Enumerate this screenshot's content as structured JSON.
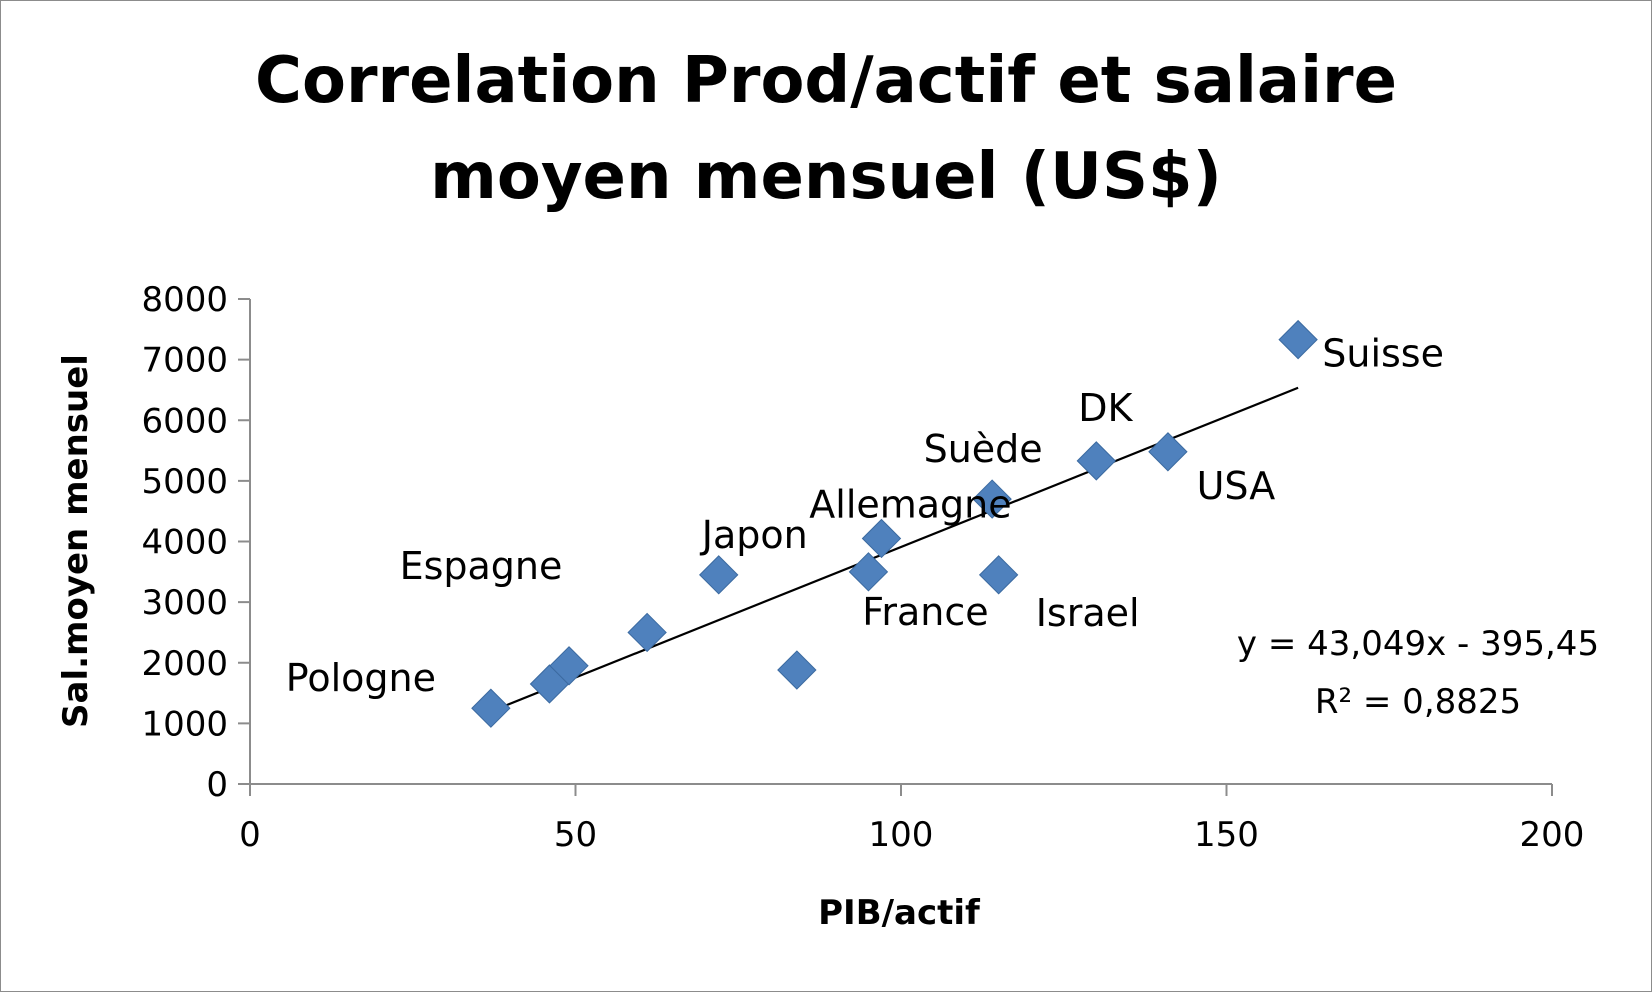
{
  "chart_data": {
    "type": "scatter",
    "title_lines": [
      "Correlation Prod/actif et salaire",
      "moyen mensuel (US$)"
    ],
    "xlabel": "PIB/actif",
    "ylabel": "Sal.moyen mensuel",
    "xlim": [
      0,
      200
    ],
    "ylim": [
      0,
      8000
    ],
    "xticks": [
      "0",
      "50",
      "100",
      "150",
      "200"
    ],
    "yticks": [
      "0",
      "1000",
      "2000",
      "3000",
      "4000",
      "5000",
      "6000",
      "7000",
      "8000"
    ],
    "grid": false,
    "marker_color": "#4f81bd",
    "points": [
      {
        "x": 37,
        "y": 1250,
        "label": "Pologne"
      },
      {
        "x": 46,
        "y": 1650,
        "label": ""
      },
      {
        "x": 49,
        "y": 1950,
        "label": "Espagne"
      },
      {
        "x": 61,
        "y": 2500,
        "label": ""
      },
      {
        "x": 72,
        "y": 3450,
        "label": "Japon"
      },
      {
        "x": 84,
        "y": 1880,
        "label": ""
      },
      {
        "x": 95,
        "y": 3500,
        "label": "France"
      },
      {
        "x": 97,
        "y": 4050,
        "label": "Allemagne"
      },
      {
        "x": 114,
        "y": 4700,
        "label": "Suède"
      },
      {
        "x": 115,
        "y": 3450,
        "label": "Israel"
      },
      {
        "x": 130,
        "y": 5330,
        "label": "DK"
      },
      {
        "x": 141,
        "y": 5480,
        "label": "USA"
      },
      {
        "x": 161,
        "y": 7330,
        "label": "Suisse"
      }
    ],
    "trendline": {
      "slope": 43.049,
      "intercept": -395.45,
      "x_range": [
        37,
        161
      ],
      "equation": "y = 43,049x - 395,45",
      "r_squared": "R² = 0,8825"
    }
  }
}
